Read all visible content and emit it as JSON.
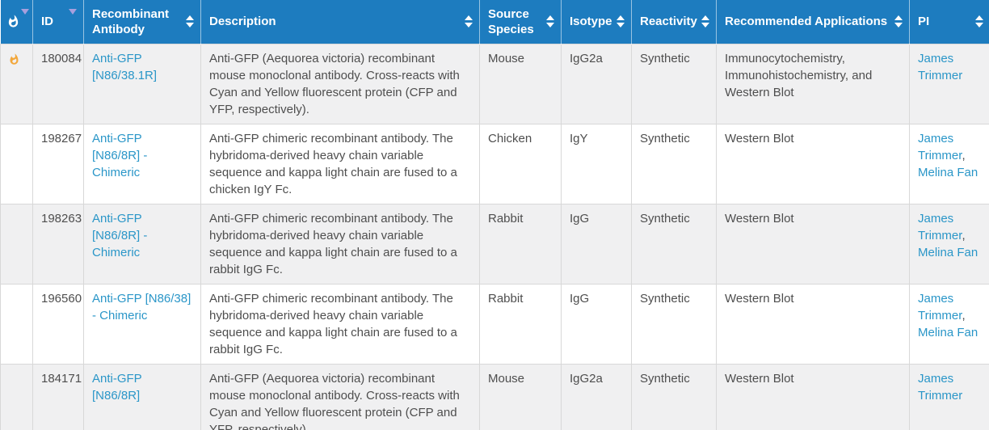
{
  "table": {
    "columns": [
      {
        "key": "hot",
        "label": "",
        "icon": "flame-icon",
        "sort": "desc"
      },
      {
        "key": "id",
        "label": "ID",
        "sort": "desc"
      },
      {
        "key": "antibody",
        "label": "Recombinant Antibody",
        "sort": "both"
      },
      {
        "key": "description",
        "label": "Description",
        "sort": "both"
      },
      {
        "key": "source_species",
        "label": "Source Species",
        "sort": "both"
      },
      {
        "key": "isotype",
        "label": "Isotype",
        "sort": "both"
      },
      {
        "key": "reactivity",
        "label": "Reactivity",
        "sort": "both"
      },
      {
        "key": "applications",
        "label": "Recommended Applications",
        "sort": "both"
      },
      {
        "key": "pi",
        "label": "PI",
        "sort": "both"
      }
    ],
    "rows": [
      {
        "hot": true,
        "id": "180084",
        "antibody": "Anti-GFP [N86/38.1R]",
        "description": "Anti-GFP (Aequorea victoria) recombinant mouse monoclonal antibody. Cross-reacts with Cyan and Yellow fluorescent protein (CFP and YFP, respectively).",
        "source_species": "Mouse",
        "isotype": "IgG2a",
        "reactivity": "Synthetic",
        "applications": "Immunocytochemistry, Immunohistochemistry, and Western Blot",
        "pi": [
          "James Trimmer"
        ]
      },
      {
        "hot": false,
        "id": "198267",
        "antibody": "Anti-GFP [N86/8R] - Chimeric",
        "description": "Anti-GFP chimeric recombinant antibody. The hybridoma-derived heavy chain variable sequence and kappa light chain are fused to a chicken IgY Fc.",
        "source_species": "Chicken",
        "isotype": "IgY",
        "reactivity": "Synthetic",
        "applications": "Western Blot",
        "pi": [
          "James Trimmer",
          "Melina Fan"
        ]
      },
      {
        "hot": false,
        "id": "198263",
        "antibody": "Anti-GFP [N86/8R] - Chimeric",
        "description": "Anti-GFP chimeric recombinant antibody. The hybridoma-derived heavy chain variable sequence and kappa light chain are fused to a rabbit IgG Fc.",
        "source_species": "Rabbit",
        "isotype": "IgG",
        "reactivity": "Synthetic",
        "applications": "Western Blot",
        "pi": [
          "James Trimmer",
          "Melina Fan"
        ]
      },
      {
        "hot": false,
        "id": "196560",
        "antibody": "Anti-GFP [N86/38] - Chimeric",
        "description": "Anti-GFP chimeric recombinant antibody. The hybridoma-derived heavy chain variable sequence and kappa light chain are fused to a rabbit IgG Fc.",
        "source_species": "Rabbit",
        "isotype": "IgG",
        "reactivity": "Synthetic",
        "applications": "Western Blot",
        "pi": [
          "James Trimmer",
          "Melina Fan"
        ]
      },
      {
        "hot": false,
        "id": "184171",
        "antibody": "Anti-GFP [N86/8R]",
        "description": "Anti-GFP (Aequorea victoria) recombinant mouse monoclonal antibody. Cross-reacts with Cyan and Yellow fluorescent protein (CFP and YFP, respectively).",
        "source_species": "Mouse",
        "isotype": "IgG2a",
        "reactivity": "Synthetic",
        "applications": "Western Blot",
        "pi": [
          "James Trimmer"
        ]
      }
    ]
  },
  "colors": {
    "header_bg": "#1d7cbf",
    "header_text": "#ffffff",
    "link": "#2a96c8",
    "row_stripe": "#f0f0f1",
    "row_white": "#ffffff",
    "cell_border": "#d8d8d8",
    "flame_orange": "#f2a73b",
    "sort_caret_sorted": "#a79fdd",
    "sort_caret": "#ffffff",
    "body_text": "#4e4e4e",
    "page_bg": "#dcdcdc"
  }
}
